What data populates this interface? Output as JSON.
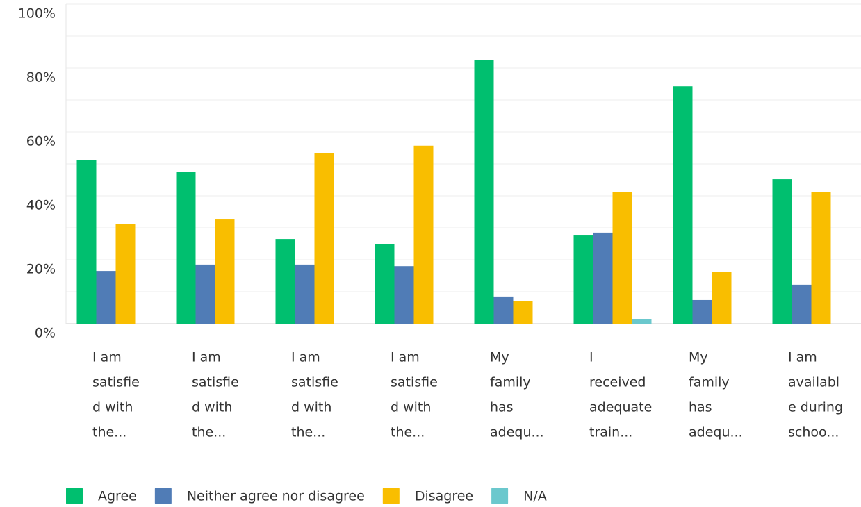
{
  "chart_data": {
    "type": "bar",
    "categories": [
      [
        "I am",
        "satisfie",
        "d with",
        "the..."
      ],
      [
        "I am",
        "satisfie",
        "d with",
        "the..."
      ],
      [
        "I am",
        "satisfie",
        "d with",
        "the..."
      ],
      [
        "I am",
        "satisfie",
        "d with",
        "the..."
      ],
      [
        "My",
        "family",
        "has",
        "adequ..."
      ],
      [
        "I",
        "received",
        "adequate",
        "train..."
      ],
      [
        "My",
        "family",
        "has",
        "adequ..."
      ],
      [
        "I am",
        "availabl",
        "e during",
        "schoo..."
      ]
    ],
    "series": [
      {
        "name": "Agree",
        "color": "#00bf6f",
        "values": [
          51.1,
          47.6,
          26.5,
          25,
          82.6,
          27.6,
          74.3,
          45.2
        ]
      },
      {
        "name": "Neither agree nor disagree",
        "color": "#507cb6",
        "values": [
          16.5,
          18.5,
          18.5,
          18,
          8.5,
          28.5,
          7.4,
          12.2
        ]
      },
      {
        "name": "Disagree",
        "color": "#f9be00",
        "values": [
          31.1,
          32.6,
          53.3,
          55.7,
          7,
          41.1,
          16.1,
          41.1
        ]
      },
      {
        "name": "N/A",
        "color": "#6bc8cd",
        "values": [
          0,
          0,
          0,
          0,
          0,
          1.5,
          0,
          0
        ]
      }
    ],
    "ylim": [
      0,
      100
    ],
    "yticks": [
      {
        "value": 0,
        "label": "0%"
      },
      {
        "value": 20,
        "label": "20%"
      },
      {
        "value": 40,
        "label": "40%"
      },
      {
        "value": 60,
        "label": "60%"
      },
      {
        "value": 80,
        "label": "80%"
      },
      {
        "value": 100,
        "label": "100%"
      }
    ],
    "minor_yticks": [
      10,
      30,
      50,
      70,
      90
    ],
    "grid": true,
    "legend": "bottom"
  }
}
